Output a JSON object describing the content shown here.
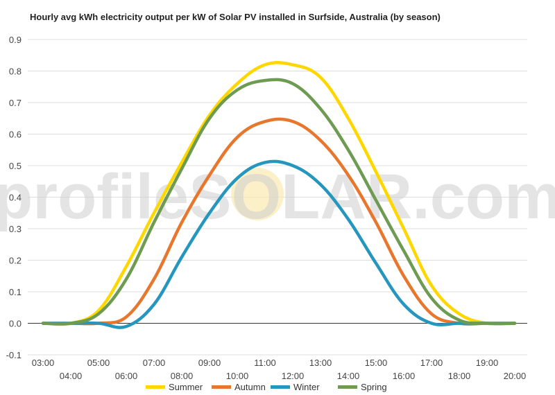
{
  "chart_data": {
    "type": "line",
    "title": "Hourly avg kWh electricity output per kW of Solar PV installed in Surfside, Australia (by season)",
    "xlabel": "",
    "ylabel": "",
    "ylim": [
      -0.1,
      0.9
    ],
    "yticks": [
      "-0.1",
      "0.0",
      "0.1",
      "0.2",
      "0.3",
      "0.4",
      "0.5",
      "0.6",
      "0.7",
      "0.8",
      "0.9"
    ],
    "grid": true,
    "legend_position": "bottom",
    "categories": [
      "03:00",
      "04:00",
      "05:00",
      "06:00",
      "07:00",
      "08:00",
      "09:00",
      "10:00",
      "11:00",
      "12:00",
      "13:00",
      "14:00",
      "15:00",
      "16:00",
      "17:00",
      "18:00",
      "19:00",
      "20:00"
    ],
    "series": [
      {
        "name": "Summer",
        "color": "#ffd700",
        "values": [
          0.0,
          0.0,
          0.04,
          0.18,
          0.35,
          0.51,
          0.66,
          0.76,
          0.82,
          0.82,
          0.78,
          0.65,
          0.48,
          0.3,
          0.12,
          0.03,
          0.0,
          0.0
        ]
      },
      {
        "name": "Autumn",
        "color": "#e8772e",
        "values": [
          0.0,
          0.0,
          0.0,
          0.02,
          0.14,
          0.32,
          0.47,
          0.59,
          0.64,
          0.64,
          0.58,
          0.47,
          0.32,
          0.15,
          0.03,
          0.0,
          0.0,
          0.0
        ]
      },
      {
        "name": "Winter",
        "color": "#2596be",
        "values": [
          0.0,
          0.0,
          0.0,
          -0.01,
          0.06,
          0.21,
          0.35,
          0.46,
          0.51,
          0.5,
          0.44,
          0.33,
          0.19,
          0.06,
          0.0,
          0.0,
          0.0,
          0.0
        ]
      },
      {
        "name": "Spring",
        "color": "#6e9b52",
        "values": [
          0.0,
          0.0,
          0.03,
          0.14,
          0.32,
          0.49,
          0.65,
          0.74,
          0.77,
          0.76,
          0.68,
          0.55,
          0.39,
          0.23,
          0.08,
          0.01,
          0.0,
          0.0
        ]
      }
    ],
    "watermark": "profileSOLAR.com"
  }
}
